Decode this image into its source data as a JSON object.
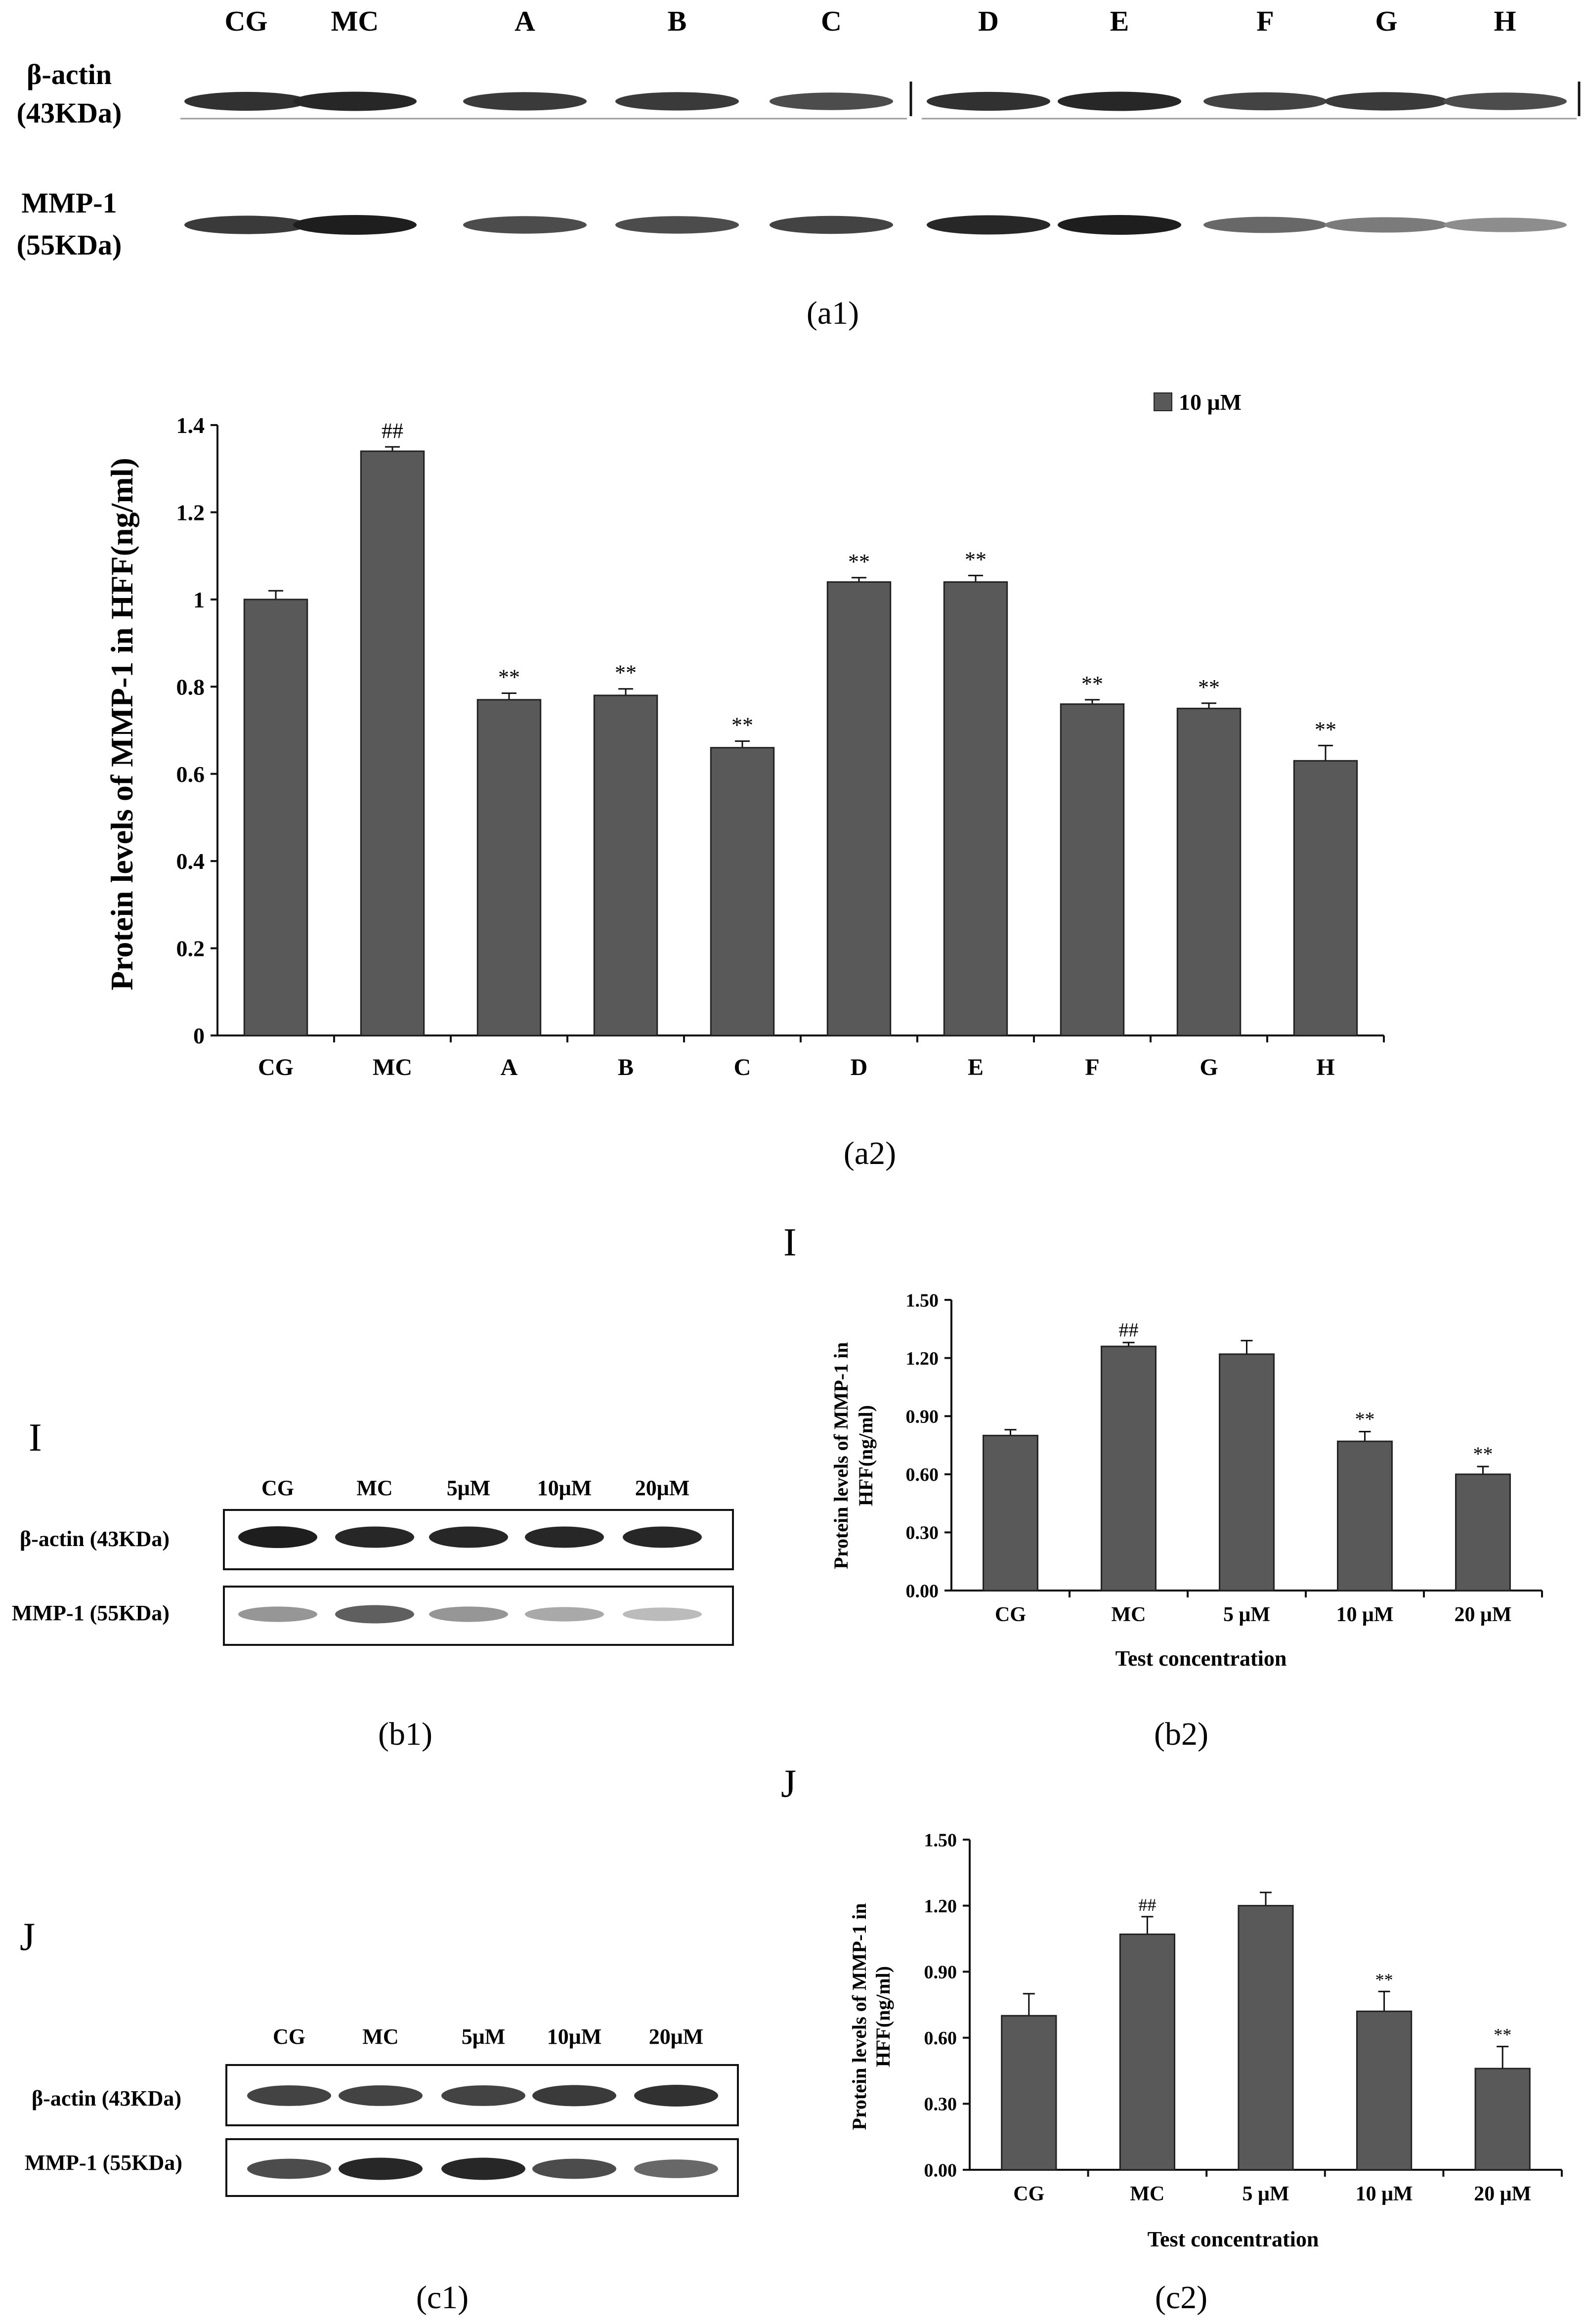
{
  "blot_a1": {
    "lanes": [
      "CG",
      "MC",
      "A",
      "B",
      "C",
      "D",
      "E",
      "F",
      "G",
      "H"
    ],
    "row1_label_line1": "β-actin",
    "row1_label_line2": "(43KDa)",
    "row2_label_line1": "MMP-1",
    "row2_label_line2": "(55KDa)",
    "caption": "(a1)",
    "actin_intensity": [
      0.9,
      0.95,
      0.85,
      0.85,
      0.75,
      0.9,
      0.95,
      0.8,
      0.85,
      0.75
    ],
    "mmp1_intensity": [
      0.85,
      1.0,
      0.75,
      0.75,
      0.8,
      0.95,
      1.0,
      0.6,
      0.5,
      0.4
    ]
  },
  "blot_b1": {
    "panel_letter": "I",
    "lanes": [
      "CG",
      "MC",
      "5μM",
      "10μM",
      "20μM"
    ],
    "row1_label": "β-actin (43KDa)",
    "row2_label": "MMP-1 (55KDa)",
    "caption": "(b1)",
    "actin_intensity": [
      1.0,
      0.95,
      0.95,
      0.95,
      0.95
    ],
    "mmp1_intensity": [
      0.35,
      0.65,
      0.35,
      0.25,
      0.15
    ]
  },
  "blot_c1": {
    "panel_letter": "J",
    "lanes": [
      "CG",
      "MC",
      "5μM",
      "10μM",
      "20μM"
    ],
    "row1_label": "β-actin (43KDa)",
    "row2_label": "MMP-1 (55KDa)",
    "caption": "(c1)",
    "actin_intensity": [
      0.8,
      0.8,
      0.8,
      0.85,
      0.9
    ],
    "mmp1_intensity": [
      0.75,
      0.95,
      0.95,
      0.75,
      0.6
    ]
  },
  "chart_data": [
    {
      "id": "a2",
      "type": "bar",
      "categories": [
        "CG",
        "MC",
        "A",
        "B",
        "C",
        "D",
        "E",
        "F",
        "G",
        "H"
      ],
      "values": [
        1.0,
        1.34,
        0.77,
        0.78,
        0.66,
        1.04,
        1.04,
        0.76,
        0.75,
        0.63
      ],
      "errors": [
        0.02,
        0.01,
        0.015,
        0.015,
        0.015,
        0.01,
        0.015,
        0.01,
        0.012,
        0.035
      ],
      "annotations": [
        "",
        "##",
        "**",
        "**",
        "**",
        "**",
        "**",
        "**",
        "**",
        "**"
      ],
      "title": "",
      "xlabel": "",
      "ylabel": "Protein levels of MMP-1 in HFF(ng/ml)",
      "ylim": [
        0,
        1.4
      ],
      "yticks": [
        "0",
        "0.2",
        "0.4",
        "0.6",
        "0.8",
        "1",
        "1.2",
        "1.4"
      ],
      "legend": [
        "10 μM"
      ],
      "legend_position": "top-right",
      "color": "#595959",
      "caption": "(a2)"
    },
    {
      "id": "b2",
      "type": "bar",
      "panel_letter": "I",
      "categories": [
        "CG",
        "MC",
        "5 μM",
        "10 μM",
        "20 μM"
      ],
      "values": [
        0.8,
        1.26,
        1.22,
        0.77,
        0.6
      ],
      "errors": [
        0.03,
        0.02,
        0.07,
        0.05,
        0.04
      ],
      "annotations": [
        "",
        "##",
        "",
        "**",
        "**"
      ],
      "xlabel": "Test concentration",
      "ylabel_line1": "Protein levels of MMP-1 in",
      "ylabel_line2": "HFF(ng/ml)",
      "ylim": [
        0,
        1.5
      ],
      "yticks": [
        "0.00",
        "0.30",
        "0.60",
        "0.90",
        "1.20",
        "1.50"
      ],
      "color": "#595959",
      "caption": "(b2)"
    },
    {
      "id": "c2",
      "type": "bar",
      "panel_letter": "J",
      "categories": [
        "CG",
        "MC",
        "5 μM",
        "10 μM",
        "20 μM"
      ],
      "values": [
        0.7,
        1.07,
        1.2,
        0.72,
        0.46
      ],
      "errors": [
        0.1,
        0.08,
        0.06,
        0.09,
        0.1
      ],
      "annotations": [
        "",
        "##",
        "",
        "**",
        "**"
      ],
      "xlabel": "Test concentration",
      "ylabel_line1": "Protein levels of MMP-1 in",
      "ylabel_line2": "HFF(ng/ml)",
      "ylim": [
        0,
        1.5
      ],
      "yticks": [
        "0.00",
        "0.30",
        "0.60",
        "0.90",
        "1.20",
        "1.50"
      ],
      "color": "#595959",
      "caption": "(c2)"
    }
  ]
}
